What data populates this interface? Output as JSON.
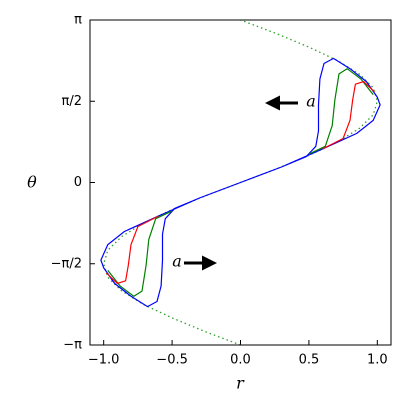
{
  "chart_data": {
    "type": "line",
    "x_label": "r",
    "y_label": "θ",
    "annotations": [
      "a",
      "a"
    ],
    "xlim": [
      -1.1,
      1.1
    ],
    "ylim": [
      -3.1416,
      3.1416
    ],
    "xticks": [
      {
        "value": -1.0,
        "label": "−1.0"
      },
      {
        "value": -0.5,
        "label": "−0.5"
      },
      {
        "value": 0,
        "label": "0.0"
      },
      0.5,
      {
        "value": 1.0,
        "label": "1.0"
      }
    ],
    "yticks": [
      {
        "value": -3.1416,
        "label": "−π"
      },
      {
        "value": -1.5708,
        "label": "−π/2"
      },
      0,
      {
        "value": 1.5708,
        "label": "π/2"
      },
      {
        "value": 3.1416,
        "label": "π"
      }
    ],
    "series": [
      {
        "color": "#2ca02c",
        "dashed": true,
        "x": [
          0,
          -0.26,
          -0.5,
          -0.71,
          -0.87,
          -0.97,
          -1.0,
          -0.97,
          -0.87,
          -0.71,
          -0.5,
          -0.26,
          0,
          0.26,
          0.5,
          0.71,
          0.87,
          0.97,
          1.0,
          0.97,
          0.87,
          0.71,
          0.5,
          0.26,
          0
        ],
        "values": [
          -3.1416,
          -2.8798,
          -2.618,
          -2.3562,
          -2.0944,
          -1.8326,
          -1.5708,
          -1.309,
          -1.0472,
          -0.7854,
          -0.5236,
          -0.2618,
          0,
          0.2618,
          0.5236,
          0.7854,
          1.0472,
          1.309,
          1.5708,
          1.8326,
          2.0944,
          2.3562,
          2.618,
          2.8798,
          3.1416
        ]
      },
      {
        "color": "#0000ff",
        "x": [
          0,
          0.3,
          0.48,
          0.55,
          0.57,
          0.57,
          0.58,
          0.61,
          0.68,
          0.8,
          0.92,
          1.0,
          1.02,
          0.97,
          0.85,
          0.6,
          0.3,
          0
        ],
        "values": [
          0,
          0.3,
          0.5,
          0.7,
          1.0,
          1.5,
          2.0,
          2.3,
          2.4,
          2.2,
          1.95,
          1.65,
          1.5,
          1.2,
          0.95,
          0.65,
          0.3,
          0
        ]
      },
      {
        "color": "#0000ff",
        "x": [
          0,
          -0.3,
          -0.48,
          -0.55,
          -0.57,
          -0.57,
          -0.58,
          -0.61,
          -0.68,
          -0.8,
          -0.92,
          -1.0,
          -1.02,
          -0.97,
          -0.85,
          -0.6,
          -0.3,
          0
        ],
        "values": [
          0,
          -0.3,
          -0.5,
          -0.7,
          -1.0,
          -1.5,
          -2.0,
          -2.3,
          -2.4,
          -2.2,
          -1.95,
          -1.65,
          -1.5,
          -1.2,
          -0.95,
          -0.65,
          -0.3,
          0
        ]
      },
      {
        "color": "#008000",
        "x": [
          0.5,
          0.62,
          0.67,
          0.69,
          0.72,
          0.78,
          0.88,
          0.97
        ],
        "values": [
          0.55,
          0.7,
          1.1,
          1.6,
          2.1,
          2.2,
          2.0,
          1.7
        ]
      },
      {
        "color": "#008000",
        "x": [
          -0.5,
          -0.62,
          -0.67,
          -0.69,
          -0.72,
          -0.78,
          -0.88,
          -0.97
        ],
        "values": [
          -0.55,
          -0.7,
          -1.1,
          -1.6,
          -2.1,
          -2.2,
          -2.0,
          -1.7
        ]
      },
      {
        "color": "#ff0000",
        "x": [
          0.6,
          0.75,
          0.8,
          0.82,
          0.84,
          0.9,
          0.98
        ],
        "values": [
          0.65,
          0.85,
          1.2,
          1.6,
          1.9,
          1.95,
          1.75
        ]
      },
      {
        "color": "#ff0000",
        "x": [
          -0.6,
          -0.75,
          -0.8,
          -0.82,
          -0.84,
          -0.9,
          -0.98
        ],
        "values": [
          -0.65,
          -0.85,
          -1.2,
          -1.6,
          -1.9,
          -1.95,
          -1.75
        ]
      }
    ]
  }
}
